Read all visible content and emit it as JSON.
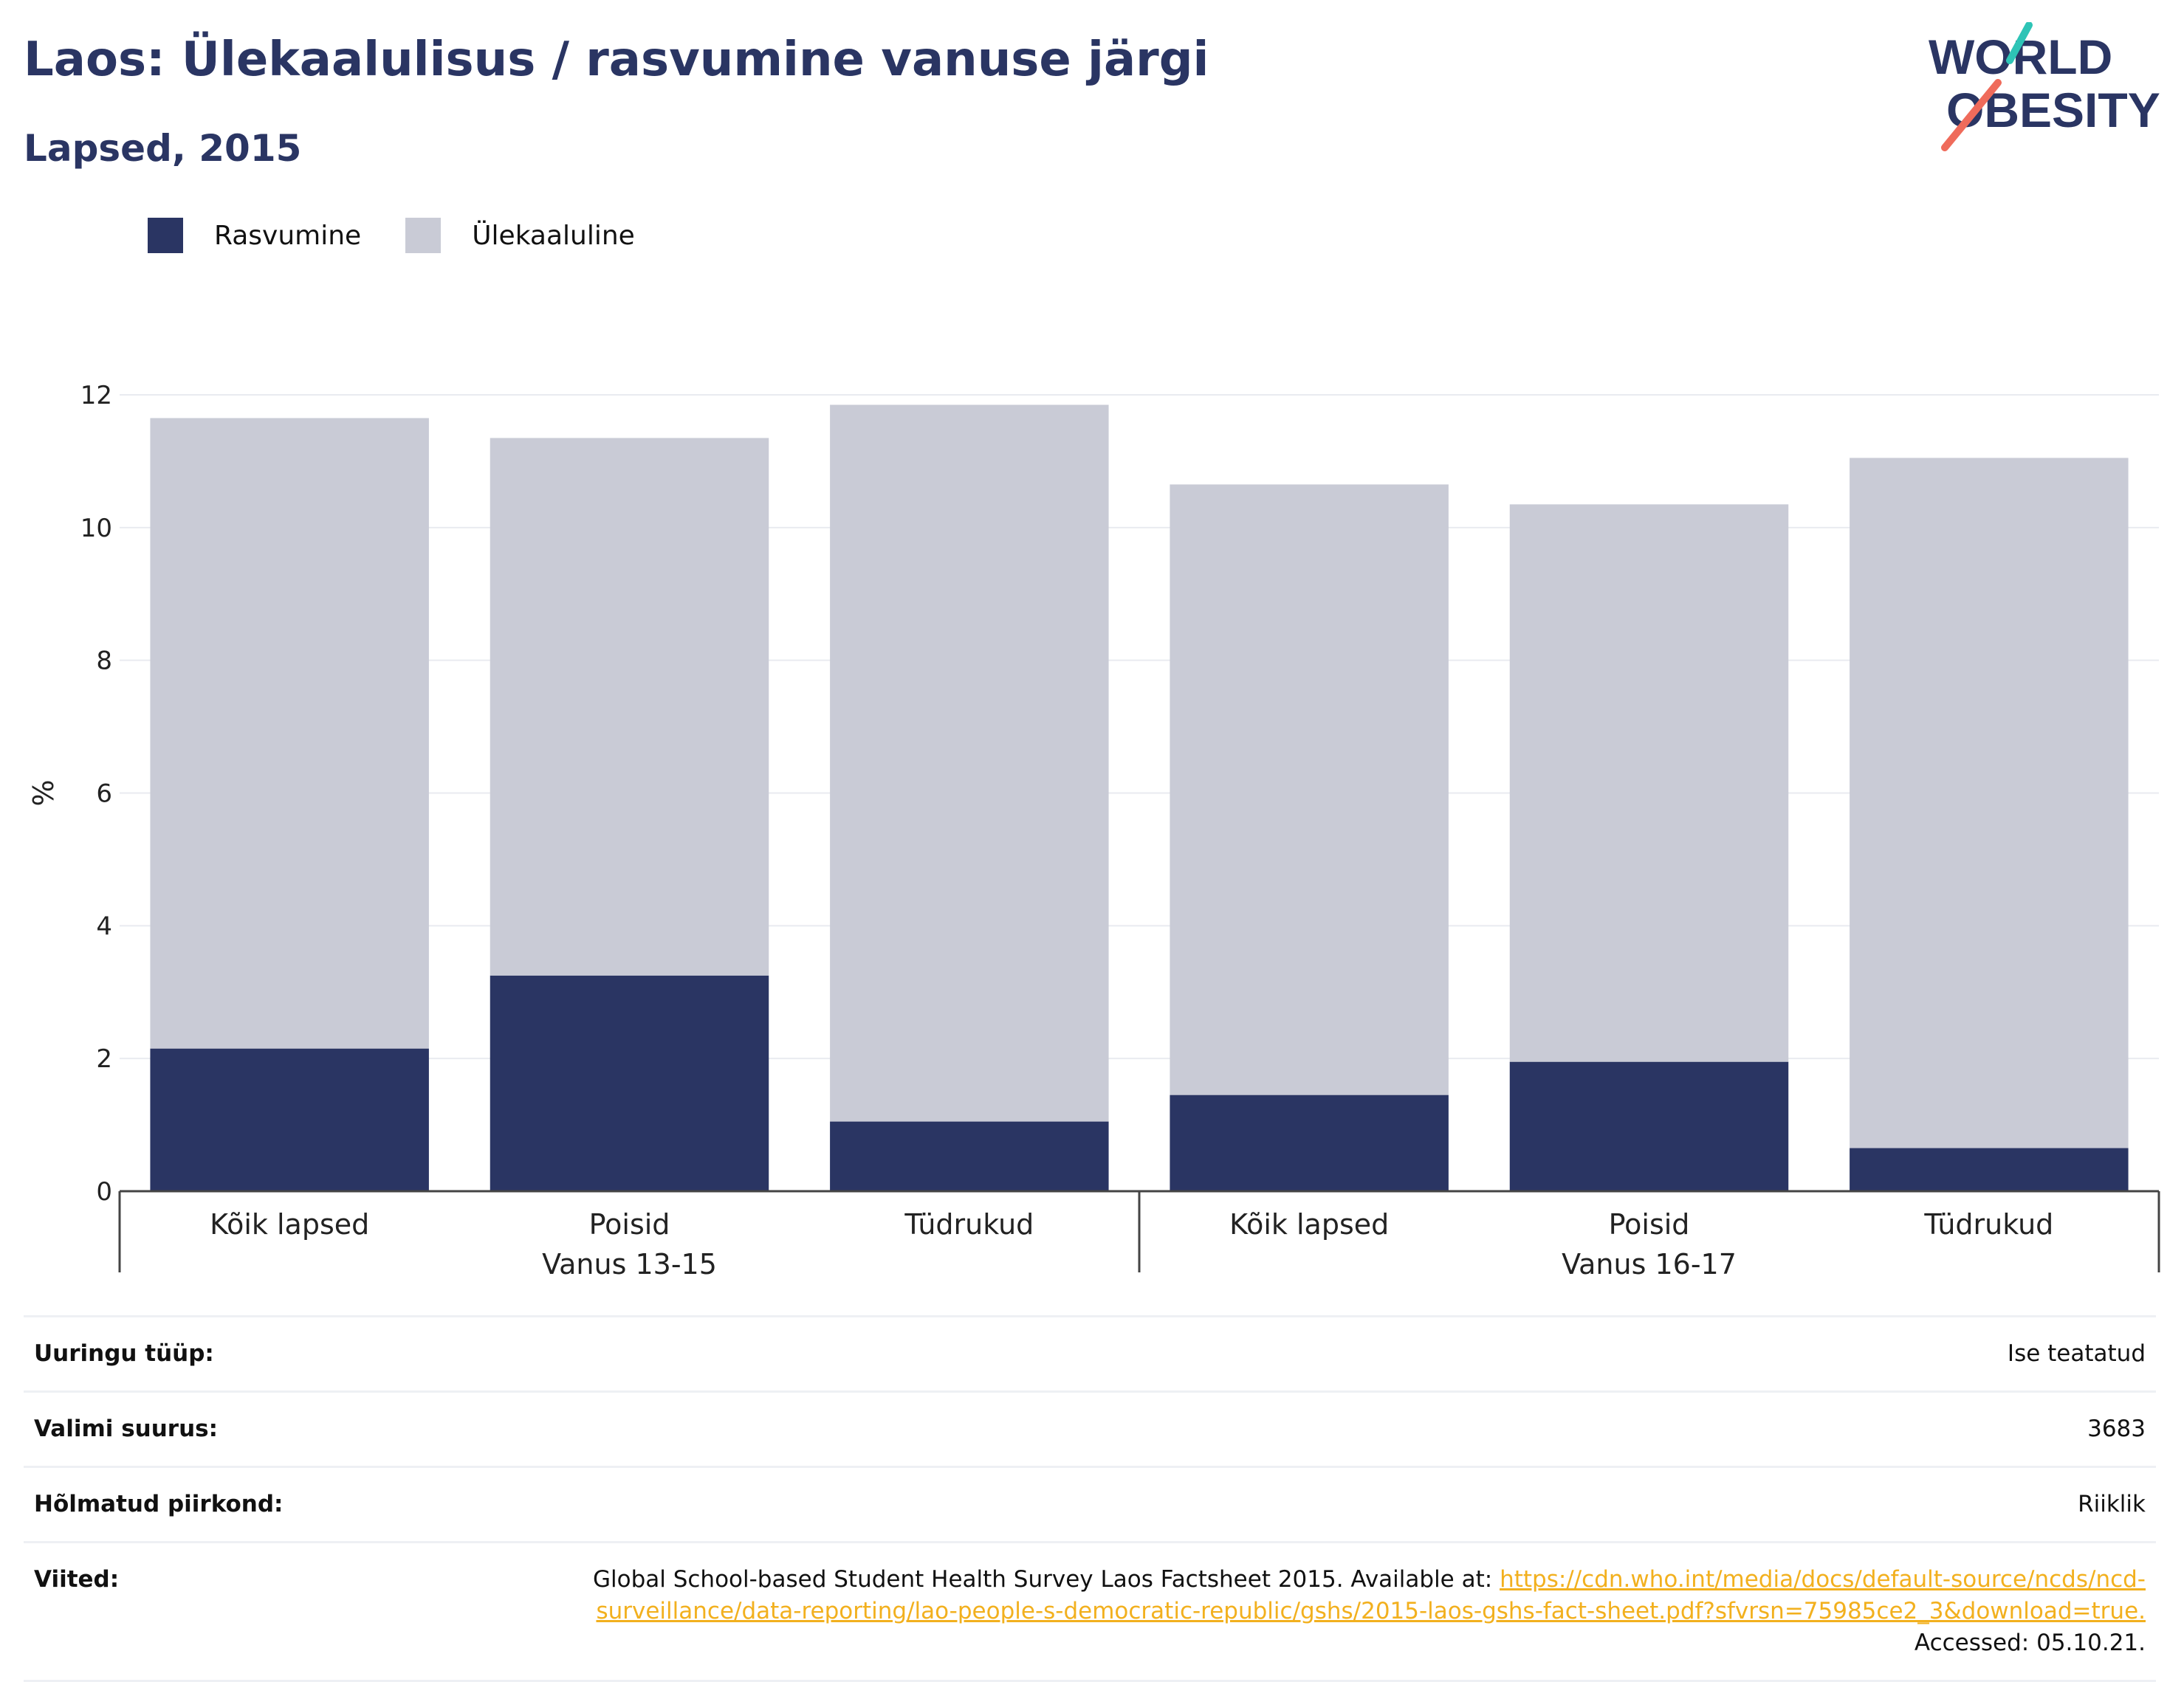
{
  "header": {
    "title": "Laos: Ülekaalulisus / rasvumine vanuse järgi",
    "subtitle": "Lapsed, 2015"
  },
  "logo": {
    "line1": "WORLD",
    "line2": "OBESITY"
  },
  "colors": {
    "obesity": "#2a3563",
    "overweight": "#c9cbd6",
    "title": "#2a3563",
    "link": "#f2b01e",
    "logo_teal": "#2ec4b6",
    "logo_coral": "#ef6b5b"
  },
  "chart_data": {
    "type": "bar",
    "stacked": true,
    "title": "Laos: Ülekaalulisus / rasvumine vanuse järgi",
    "subtitle": "Lapsed, 2015",
    "ylabel": "%",
    "ylim": [
      0,
      12
    ],
    "yticks": [
      0,
      2,
      4,
      6,
      8,
      10,
      12
    ],
    "grid": true,
    "legend_position": "top-left",
    "categories": [
      "Kõik lapsed",
      "Poisid",
      "Tüdrukud",
      "Kõik lapsed",
      "Poisid",
      "Tüdrukud"
    ],
    "groups": [
      {
        "label": "Vanus 13-15",
        "categories": [
          0,
          1,
          2
        ]
      },
      {
        "label": "Vanus 16-17",
        "categories": [
          3,
          4,
          5
        ]
      }
    ],
    "series": [
      {
        "name": "Rasvumine",
        "color": "#2a3563",
        "values": [
          2.15,
          3.25,
          1.05,
          1.45,
          1.95,
          0.65
        ]
      },
      {
        "name": "Ülekaaluline",
        "color": "#c9cbd6",
        "values": [
          9.5,
          8.1,
          10.8,
          9.2,
          8.4,
          10.4
        ]
      }
    ]
  },
  "info": {
    "rows": [
      {
        "label": "Uuringu tüüp:",
        "value": "Ise teatatud"
      },
      {
        "label": "Valimi suurus:",
        "value": "3683"
      },
      {
        "label": "Hõlmatud piirkond:",
        "value": "Riiklik"
      }
    ],
    "references": {
      "label": "Viited:",
      "text_before": "Global School-based Student Health Survey Laos Factsheet 2015. Available at: ",
      "link": "https://cdn.who.int/media/docs/default-source/ncds/ncd-surveillance/data-reporting/lao-people-s-democratic-republic/gshs/2015-laos-gshs-fact-sheet.pdf?sfvrsn=75985ce2_3&download=true.",
      "text_after": " Accessed: 05.10.21."
    }
  }
}
